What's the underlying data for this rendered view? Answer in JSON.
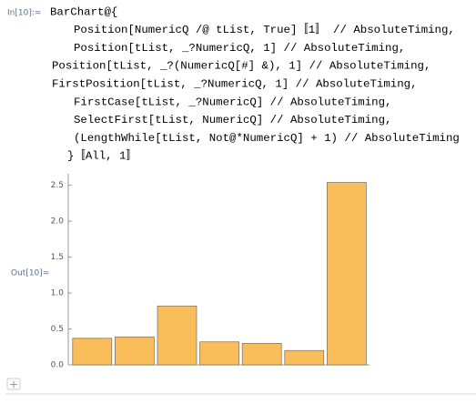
{
  "input": {
    "label": "In[10]:=",
    "lines": [
      "BarChart@{",
      "Position[NumericQ /@ tList, True]〚1〛 // AbsoluteTiming,",
      "Position[tList, _?NumericQ, 1] // AbsoluteTiming,",
      "Position[tList, _?(NumericQ[#] &), 1] // AbsoluteTiming,",
      "FirstPosition[tList, _?NumericQ, 1] // AbsoluteTiming,",
      "FirstCase[tList, _?NumericQ] // AbsoluteTiming,",
      "SelectFirst[tList, NumericQ] // AbsoluteTiming,",
      "(LengthWhile[tList, Not@*NumericQ] + 1) // AbsoluteTiming",
      "}〚All, 1〛"
    ]
  },
  "output": {
    "label": "Out[10]="
  },
  "chart_data": {
    "type": "bar",
    "categories": [
      null,
      null,
      null,
      null,
      null,
      null,
      null
    ],
    "values": [
      0.37,
      0.39,
      0.82,
      0.32,
      0.3,
      0.2,
      2.54
    ],
    "color": "#f9bd59",
    "ylim": [
      0,
      2.66
    ],
    "yticks": [
      {
        "value": 0,
        "label": "0.0"
      },
      0.5,
      {
        "value": 1,
        "label": "1.0"
      },
      1.5,
      {
        "value": 2,
        "label": "2.0"
      },
      2.5
    ]
  }
}
